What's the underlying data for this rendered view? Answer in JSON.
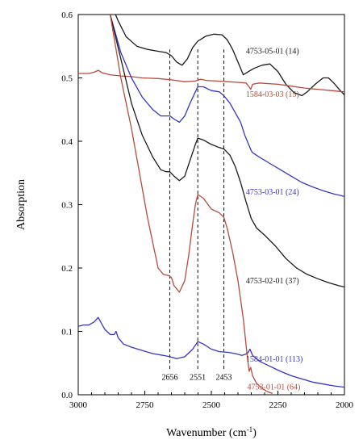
{
  "chart_data": {
    "type": "line",
    "xlabel": "Wavenumber (cm",
    "xlabel_sup": "-1",
    "xlabel_end": ")",
    "ylabel": "Absorption",
    "xlim": [
      3000,
      2000
    ],
    "ylim": [
      0.0,
      0.6
    ],
    "x_ticks": [
      3000,
      2750,
      2500,
      2250,
      2000
    ],
    "y_ticks": [
      0.0,
      0.1,
      0.2,
      0.3,
      0.4,
      0.5,
      0.6
    ],
    "y_tick_labels": [
      "0.0",
      "0.1",
      "0.2",
      "0.3",
      "0.4",
      "0.5",
      "0.6"
    ],
    "grid": false,
    "reference_lines": [
      {
        "x": 2656,
        "label": "2656"
      },
      {
        "x": 2551,
        "label": "2551"
      },
      {
        "x": 2453,
        "label": "2453"
      }
    ],
    "series": [
      {
        "name": "4753-05-01 (14)",
        "color": "#1a1a1a",
        "label_x": 2370,
        "label_y": 0.538,
        "points": [
          [
            2880,
            0.62
          ],
          [
            2850,
            0.59
          ],
          [
            2820,
            0.565
          ],
          [
            2780,
            0.55
          ],
          [
            2740,
            0.545
          ],
          [
            2700,
            0.542
          ],
          [
            2670,
            0.54
          ],
          [
            2650,
            0.535
          ],
          [
            2630,
            0.525
          ],
          [
            2610,
            0.52
          ],
          [
            2590,
            0.53
          ],
          [
            2570,
            0.548
          ],
          [
            2551,
            0.558
          ],
          [
            2520,
            0.566
          ],
          [
            2490,
            0.569
          ],
          [
            2460,
            0.568
          ],
          [
            2440,
            0.56
          ],
          [
            2420,
            0.545
          ],
          [
            2400,
            0.525
          ],
          [
            2380,
            0.505
          ],
          [
            2360,
            0.51
          ],
          [
            2340,
            0.515
          ],
          [
            2310,
            0.52
          ],
          [
            2280,
            0.522
          ],
          [
            2250,
            0.51
          ],
          [
            2220,
            0.49
          ],
          [
            2190,
            0.477
          ],
          [
            2160,
            0.472
          ],
          [
            2140,
            0.478
          ],
          [
            2110,
            0.49
          ],
          [
            2080,
            0.5
          ],
          [
            2060,
            0.5
          ],
          [
            2040,
            0.492
          ],
          [
            2020,
            0.482
          ],
          [
            2000,
            0.473
          ]
        ]
      },
      {
        "name": "1584-03-03 (15)",
        "color": "#b84b3a",
        "label_x": 2370,
        "label_y": 0.47,
        "points": [
          [
            3000,
            0.507
          ],
          [
            2960,
            0.507
          ],
          [
            2940,
            0.509
          ],
          [
            2925,
            0.512
          ],
          [
            2910,
            0.508
          ],
          [
            2880,
            0.505
          ],
          [
            2840,
            0.503
          ],
          [
            2800,
            0.502
          ],
          [
            2760,
            0.5
          ],
          [
            2700,
            0.499
          ],
          [
            2650,
            0.497
          ],
          [
            2600,
            0.494
          ],
          [
            2560,
            0.495
          ],
          [
            2540,
            0.498
          ],
          [
            2520,
            0.496
          ],
          [
            2480,
            0.495
          ],
          [
            2440,
            0.494
          ],
          [
            2400,
            0.493
          ],
          [
            2370,
            0.492
          ],
          [
            2360,
            0.487
          ],
          [
            2352,
            0.482
          ],
          [
            2345,
            0.49
          ],
          [
            2320,
            0.492
          ],
          [
            2250,
            0.49
          ],
          [
            2200,
            0.487
          ],
          [
            2150,
            0.484
          ],
          [
            2100,
            0.482
          ],
          [
            2050,
            0.48
          ],
          [
            2000,
            0.478
          ]
        ]
      },
      {
        "name": "4753-03-01 (24)",
        "color": "#3535c8",
        "label_x": 2370,
        "label_y": 0.316,
        "points": [
          [
            2880,
            0.6
          ],
          [
            2860,
            0.57
          ],
          [
            2840,
            0.54
          ],
          [
            2800,
            0.5
          ],
          [
            2760,
            0.47
          ],
          [
            2720,
            0.45
          ],
          [
            2690,
            0.44
          ],
          [
            2670,
            0.44
          ],
          [
            2655,
            0.44
          ],
          [
            2640,
            0.435
          ],
          [
            2620,
            0.43
          ],
          [
            2600,
            0.44
          ],
          [
            2580,
            0.46
          ],
          [
            2560,
            0.478
          ],
          [
            2551,
            0.486
          ],
          [
            2530,
            0.486
          ],
          [
            2500,
            0.48
          ],
          [
            2470,
            0.478
          ],
          [
            2453,
            0.472
          ],
          [
            2430,
            0.46
          ],
          [
            2410,
            0.445
          ],
          [
            2390,
            0.43
          ],
          [
            2375,
            0.41
          ],
          [
            2360,
            0.395
          ],
          [
            2350,
            0.385
          ],
          [
            2345,
            0.382
          ],
          [
            2320,
            0.375
          ],
          [
            2280,
            0.365
          ],
          [
            2240,
            0.355
          ],
          [
            2200,
            0.345
          ],
          [
            2160,
            0.335
          ],
          [
            2120,
            0.328
          ],
          [
            2080,
            0.322
          ],
          [
            2040,
            0.317
          ],
          [
            2000,
            0.313
          ]
        ]
      },
      {
        "name": "4753-02-01 (37)",
        "color": "#1a1a1a",
        "label_x": 2370,
        "label_y": 0.176,
        "points": [
          [
            2880,
            0.6
          ],
          [
            2860,
            0.565
          ],
          [
            2840,
            0.53
          ],
          [
            2800,
            0.46
          ],
          [
            2760,
            0.41
          ],
          [
            2720,
            0.375
          ],
          [
            2690,
            0.355
          ],
          [
            2670,
            0.352
          ],
          [
            2656,
            0.352
          ],
          [
            2640,
            0.345
          ],
          [
            2620,
            0.338
          ],
          [
            2600,
            0.345
          ],
          [
            2580,
            0.37
          ],
          [
            2560,
            0.395
          ],
          [
            2551,
            0.405
          ],
          [
            2530,
            0.402
          ],
          [
            2500,
            0.395
          ],
          [
            2470,
            0.39
          ],
          [
            2453,
            0.388
          ],
          [
            2430,
            0.378
          ],
          [
            2410,
            0.36
          ],
          [
            2390,
            0.335
          ],
          [
            2370,
            0.305
          ],
          [
            2350,
            0.278
          ],
          [
            2330,
            0.263
          ],
          [
            2300,
            0.252
          ],
          [
            2260,
            0.235
          ],
          [
            2220,
            0.215
          ],
          [
            2180,
            0.2
          ],
          [
            2140,
            0.19
          ],
          [
            2100,
            0.183
          ],
          [
            2060,
            0.177
          ],
          [
            2020,
            0.172
          ],
          [
            2000,
            0.17
          ]
        ]
      },
      {
        "name": "1584-01-01 (113)",
        "color": "#3535c8",
        "label_x": 2370,
        "label_y": 0.052,
        "points": [
          [
            3000,
            0.108
          ],
          [
            2980,
            0.11
          ],
          [
            2960,
            0.11
          ],
          [
            2940,
            0.115
          ],
          [
            2925,
            0.122
          ],
          [
            2912,
            0.112
          ],
          [
            2900,
            0.103
          ],
          [
            2880,
            0.095
          ],
          [
            2865,
            0.095
          ],
          [
            2858,
            0.1
          ],
          [
            2850,
            0.09
          ],
          [
            2830,
            0.08
          ],
          [
            2800,
            0.075
          ],
          [
            2760,
            0.07
          ],
          [
            2720,
            0.065
          ],
          [
            2680,
            0.062
          ],
          [
            2656,
            0.06
          ],
          [
            2630,
            0.057
          ],
          [
            2600,
            0.06
          ],
          [
            2570,
            0.072
          ],
          [
            2551,
            0.084
          ],
          [
            2530,
            0.08
          ],
          [
            2500,
            0.072
          ],
          [
            2470,
            0.068
          ],
          [
            2440,
            0.067
          ],
          [
            2410,
            0.065
          ],
          [
            2385,
            0.062
          ],
          [
            2365,
            0.065
          ],
          [
            2355,
            0.072
          ],
          [
            2345,
            0.062
          ],
          [
            2320,
            0.053
          ],
          [
            2280,
            0.045
          ],
          [
            2240,
            0.037
          ],
          [
            2200,
            0.03
          ],
          [
            2160,
            0.025
          ],
          [
            2120,
            0.02
          ],
          [
            2080,
            0.017
          ],
          [
            2040,
            0.014
          ],
          [
            2000,
            0.012
          ]
        ]
      },
      {
        "name": "4753-01-01 (64)",
        "color": "#b84b3a",
        "label_x": 2365,
        "label_y": 0.008,
        "points": [
          [
            2880,
            0.6
          ],
          [
            2860,
            0.55
          ],
          [
            2840,
            0.5
          ],
          [
            2800,
            0.42
          ],
          [
            2770,
            0.35
          ],
          [
            2740,
            0.28
          ],
          [
            2720,
            0.24
          ],
          [
            2700,
            0.2
          ],
          [
            2680,
            0.19
          ],
          [
            2660,
            0.188
          ],
          [
            2650,
            0.185
          ],
          [
            2640,
            0.172
          ],
          [
            2620,
            0.162
          ],
          [
            2600,
            0.18
          ],
          [
            2585,
            0.22
          ],
          [
            2570,
            0.27
          ],
          [
            2560,
            0.3
          ],
          [
            2551,
            0.316
          ],
          [
            2530,
            0.31
          ],
          [
            2500,
            0.293
          ],
          [
            2470,
            0.287
          ],
          [
            2453,
            0.28
          ],
          [
            2440,
            0.262
          ],
          [
            2420,
            0.225
          ],
          [
            2400,
            0.18
          ],
          [
            2380,
            0.12
          ],
          [
            2365,
            0.06
          ],
          [
            2358,
            0.037
          ],
          [
            2352,
            0.043
          ],
          [
            2345,
            0.03
          ],
          [
            2330,
            0.018
          ],
          [
            2310,
            0.01
          ],
          [
            2290,
            0.005
          ],
          [
            2270,
            0.002
          ]
        ]
      }
    ]
  }
}
